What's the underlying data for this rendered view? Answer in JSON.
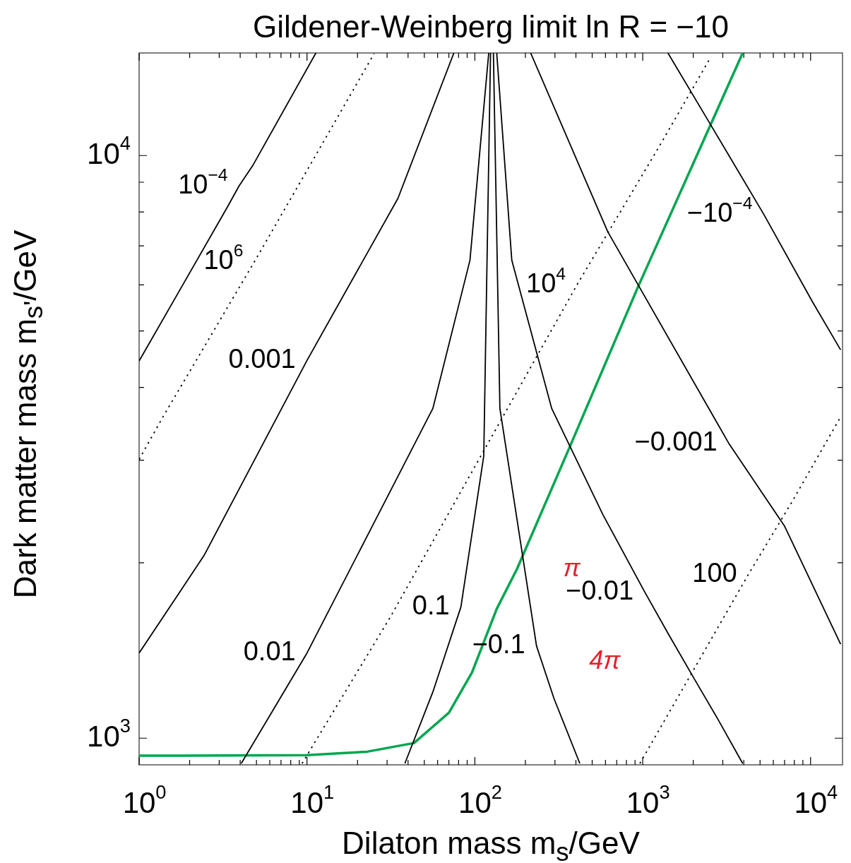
{
  "chart_data": {
    "type": "line",
    "title": "Gildener-Weinberg limit ln R = −10",
    "xlabel": "Dilaton mass m$_{s}$/GeV",
    "ylabel": "Dark matter mass m$_{s'}$/GeV",
    "log": "xy",
    "xlim": [
      1,
      15500
    ],
    "ylim": [
      900,
      15000
    ],
    "xticks": [
      {
        "value": 1,
        "label": "10$^{0}$"
      },
      {
        "value": 2,
        "label": null
      },
      {
        "value": 3,
        "label": null
      },
      {
        "value": 4,
        "label": null
      },
      {
        "value": 5,
        "label": null
      },
      {
        "value": 6,
        "label": null
      },
      {
        "value": 7,
        "label": null
      },
      {
        "value": 8,
        "label": null
      },
      {
        "value": 9,
        "label": null
      },
      {
        "value": 10,
        "label": "10$^{1}$"
      },
      {
        "value": 20,
        "label": null
      },
      {
        "value": 30,
        "label": null
      },
      {
        "value": 40,
        "label": null
      },
      {
        "value": 50,
        "label": null
      },
      {
        "value": 60,
        "label": null
      },
      {
        "value": 70,
        "label": null
      },
      {
        "value": 80,
        "label": null
      },
      {
        "value": 90,
        "label": null
      },
      {
        "value": 100,
        "label": "10$^{2}$"
      },
      {
        "value": 200,
        "label": null
      },
      {
        "value": 300,
        "label": null
      },
      {
        "value": 400,
        "label": null
      },
      {
        "value": 500,
        "label": null
      },
      {
        "value": 600,
        "label": null
      },
      {
        "value": 700,
        "label": null
      },
      {
        "value": 800,
        "label": null
      },
      {
        "value": 900,
        "label": null
      },
      {
        "value": 1000,
        "label": "10$^{3}$"
      },
      {
        "value": 2000,
        "label": null
      },
      {
        "value": 3000,
        "label": null
      },
      {
        "value": 4000,
        "label": null
      },
      {
        "value": 5000,
        "label": null
      },
      {
        "value": 6000,
        "label": null
      },
      {
        "value": 7000,
        "label": null
      },
      {
        "value": 8000,
        "label": null
      },
      {
        "value": 9000,
        "label": null
      },
      {
        "value": 10000,
        "label": "10$^{4}$"
      }
    ],
    "yticks": [
      {
        "value": 1000,
        "label": "10$^{3}$"
      },
      {
        "value": 2000,
        "label": null
      },
      {
        "value": 3000,
        "label": null
      },
      {
        "value": 4000,
        "label": null
      },
      {
        "value": 5000,
        "label": null
      },
      {
        "value": 6000,
        "label": null
      },
      {
        "value": 7000,
        "label": null
      },
      {
        "value": 8000,
        "label": null
      },
      {
        "value": 9000,
        "label": null
      },
      {
        "value": 10000,
        "label": "10$^{4}$"
      }
    ],
    "series": [
      {
        "name": "10$^{−4}$",
        "color": "#000000",
        "x": [
          1,
          3.35,
          3.94,
          4.78,
          11.3
        ],
        "values": [
          4440,
          8150,
          8870,
          9640,
          15000
        ]
      },
      {
        "name": "10$^{6}$",
        "color": "#000000",
        "line_style": "dotted",
        "x": [
          1,
          1.41,
          4.87,
          10.3,
          25.1
        ],
        "values": [
          3010,
          3590,
          6580,
          9570,
          14960
        ]
      },
      {
        "name": "0.001",
        "color": "#000000",
        "x": [
          1,
          2.44,
          10,
          34.8,
          75
        ],
        "values": [
          1400,
          2060,
          4450,
          8440,
          15000
        ]
      },
      {
        "name": "0.01",
        "color": "#000000",
        "x": [
          4.06,
          6.37,
          10,
          56.2,
          93.5,
          121
        ],
        "values": [
          905,
          1125,
          1400,
          3680,
          6610,
          15000
        ]
      },
      {
        "name": "10$^{4}$",
        "color": "#000000",
        "line_style": "dotted",
        "x": [
          9.35,
          31.6,
          406,
          1250,
          2510
        ],
        "values": [
          905,
          1620,
          6000,
          10350,
          14660
        ]
      },
      {
        "name": "0.1",
        "color": "#000000",
        "x": [
          38.3,
          56.2,
          82.6,
          113,
          124
        ],
        "values": [
          905,
          1200,
          1680,
          3050,
          15000
        ]
      },
      {
        "name": "−0.1",
        "color": "#000000",
        "x": [
          129,
          141,
          233,
          296,
          422
        ],
        "values": [
          15000,
          3680,
          1440,
          1170,
          905
        ]
      },
      {
        "name": "−0.01",
        "color": "#000000",
        "x": [
          135,
          166,
          287,
          579,
          1030,
          1440,
          2010,
          2820,
          3940
        ],
        "values": [
          15000,
          6610,
          3680,
          2420,
          1780,
          1500,
          1270,
          1075,
          905
        ]
      },
      {
        "name": "100",
        "color": "#000000",
        "line_style": "dotted",
        "x": [
          962,
          1830,
          4260,
          7720,
          15100
        ],
        "values": [
          905,
          1250,
          1910,
          2540,
          3560
        ]
      },
      {
        "name": "−0.001",
        "color": "#000000",
        "x": [
          215,
          619,
          3250,
          7010,
          15100
        ],
        "values": [
          15000,
          7400,
          3210,
          2310,
          1450
        ]
      },
      {
        "name": "−10$^{−4}$",
        "color": "#000000",
        "x": [
          1413,
          2510,
          5260,
          10300,
          15100
        ],
        "values": [
          15000,
          11360,
          7930,
          5600,
          4640
        ]
      },
      {
        "color": "#00a650",
        "x": [
          1,
          10,
          22.8,
          43.4,
          70.1,
          96.2,
          135,
          178,
          369,
          935,
          3940
        ],
        "values": [
          933,
          935,
          948,
          981,
          1106,
          1297,
          1667,
          1950,
          3170,
          5940,
          15000
        ]
      }
    ],
    "annotations": [
      "π",
      "4π"
    ]
  }
}
